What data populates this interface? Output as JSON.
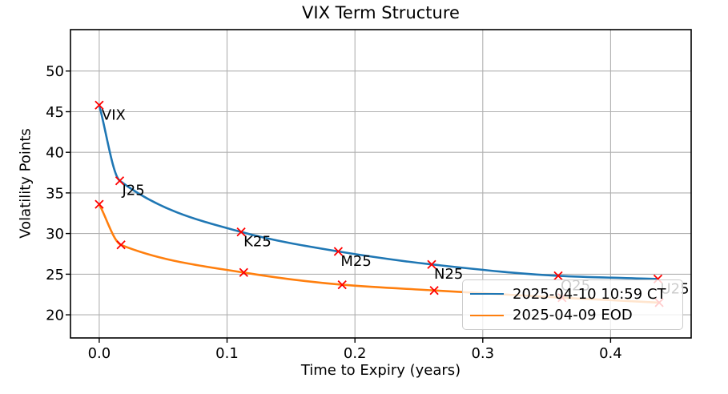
{
  "chart_data": {
    "type": "line",
    "title": "VIX Term Structure",
    "xlabel": "Time to Expiry (years)",
    "ylabel": "Volatility Points",
    "xlim": [
      -0.0225,
      0.463
    ],
    "ylim": [
      17.15,
      55.1
    ],
    "xticks": [
      0.0,
      0.1,
      0.2,
      0.3,
      0.4
    ],
    "xtick_labels": [
      "0.0",
      "0.1",
      "0.2",
      "0.3",
      "0.4"
    ],
    "yticks": [
      20,
      25,
      30,
      35,
      40,
      45,
      50
    ],
    "ytick_labels": [
      "20",
      "25",
      "30",
      "35",
      "40",
      "45",
      "50"
    ],
    "grid": true,
    "legend_position": "lower right",
    "marker": {
      "shape": "x",
      "color": "#ff0000"
    },
    "colors": {
      "grid": "#b0b0b0",
      "spine": "#000000",
      "background": "#ffffff"
    },
    "series": [
      {
        "name": "2025-04-10 10:59 CT",
        "color": "#1f77b4",
        "points": [
          {
            "label": "VIX",
            "x": 0.0,
            "y": 45.8
          },
          {
            "label": "J25",
            "x": 0.016,
            "y": 36.5
          },
          {
            "label": "K25",
            "x": 0.111,
            "y": 30.2
          },
          {
            "label": "M25",
            "x": 0.187,
            "y": 27.8
          },
          {
            "label": "N25",
            "x": 0.26,
            "y": 26.2
          },
          {
            "label": "Q25",
            "x": 0.359,
            "y": 24.8
          },
          {
            "label": "U25",
            "x": 0.437,
            "y": 24.4
          }
        ]
      },
      {
        "name": "2025-04-09 EOD",
        "color": "#ff7f0e",
        "points": [
          {
            "label": "",
            "x": 0.0,
            "y": 33.6
          },
          {
            "label": "",
            "x": 0.017,
            "y": 28.6
          },
          {
            "label": "",
            "x": 0.113,
            "y": 25.2
          },
          {
            "label": "",
            "x": 0.19,
            "y": 23.7
          },
          {
            "label": "",
            "x": 0.262,
            "y": 23.0
          },
          {
            "label": "",
            "x": 0.362,
            "y": 22.1
          },
          {
            "label": "",
            "x": 0.438,
            "y": 21.5
          }
        ]
      }
    ]
  }
}
